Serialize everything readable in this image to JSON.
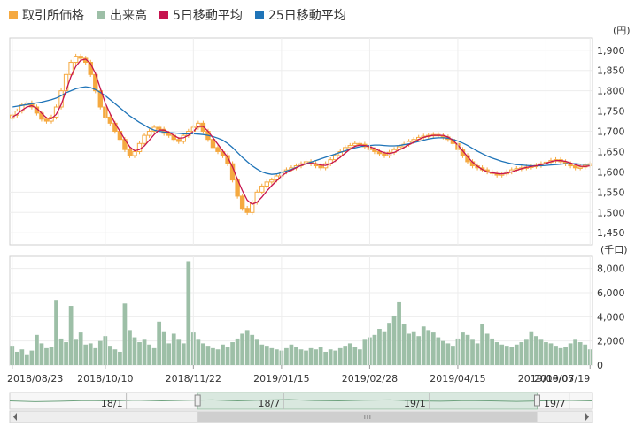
{
  "legend": [
    {
      "label": "取引所価格",
      "color": "#f5a940"
    },
    {
      "label": "出来高",
      "color": "#9dbfa7"
    },
    {
      "label": "5日移動平均",
      "color": "#c6144f"
    },
    {
      "label": "25日移動平均",
      "color": "#1f74b8"
    }
  ],
  "chart_data": [
    {
      "type": "line",
      "unit_label": "(円)",
      "ylim": [
        1420,
        1930
      ],
      "yticks": [
        1450,
        1500,
        1550,
        1600,
        1650,
        1700,
        1750,
        1800,
        1850,
        1900
      ],
      "ytick_labels": [
        "1,450",
        "1,500",
        "1,550",
        "1,600",
        "1,650",
        "1,700",
        "1,750",
        "1,800",
        "1,850",
        "1,900"
      ],
      "grid": true,
      "series": [
        {
          "name": "取引所価格",
          "kind": "candlestick",
          "color": "#f5a940",
          "values": [
            1740,
            1750,
            1765,
            1770,
            1760,
            1745,
            1730,
            1725,
            1735,
            1760,
            1800,
            1840,
            1870,
            1885,
            1880,
            1870,
            1840,
            1800,
            1760,
            1735,
            1720,
            1700,
            1680,
            1655,
            1640,
            1650,
            1670,
            1690,
            1700,
            1710,
            1705,
            1695,
            1690,
            1680,
            1675,
            1690,
            1700,
            1710,
            1720,
            1700,
            1680,
            1660,
            1650,
            1640,
            1620,
            1580,
            1540,
            1510,
            1500,
            1525,
            1550,
            1565,
            1575,
            1580,
            1590,
            1600,
            1605,
            1610,
            1615,
            1620,
            1625,
            1620,
            1615,
            1610,
            1620,
            1630,
            1640,
            1650,
            1660,
            1665,
            1670,
            1668,
            1662,
            1655,
            1650,
            1645,
            1640,
            1648,
            1655,
            1662,
            1668,
            1675,
            1680,
            1685,
            1688,
            1690,
            1692,
            1690,
            1686,
            1680,
            1670,
            1655,
            1640,
            1625,
            1615,
            1610,
            1605,
            1600,
            1596,
            1592,
            1595,
            1600,
            1605,
            1608,
            1610,
            1612,
            1614,
            1616,
            1620,
            1624,
            1628,
            1630,
            1625,
            1620,
            1615,
            1610,
            1612,
            1616,
            1620
          ]
        },
        {
          "name": "5日移動平均",
          "kind": "line",
          "color": "#c6144f",
          "values": [
            1735,
            1742,
            1752,
            1760,
            1763,
            1757,
            1745,
            1733,
            1731,
            1742,
            1766,
            1800,
            1835,
            1860,
            1875,
            1878,
            1867,
            1842,
            1806,
            1770,
            1743,
            1720,
            1700,
            1680,
            1662,
            1652,
            1655,
            1664,
            1678,
            1692,
            1703,
            1703,
            1698,
            1690,
            1683,
            1684,
            1690,
            1700,
            1712,
            1712,
            1700,
            1684,
            1668,
            1652,
            1636,
            1612,
            1582,
            1554,
            1530,
            1520,
            1525,
            1538,
            1553,
            1566,
            1578,
            1590,
            1598,
            1604,
            1610,
            1616,
            1620,
            1621,
            1620,
            1617,
            1616,
            1620,
            1627,
            1636,
            1646,
            1656,
            1663,
            1666,
            1665,
            1662,
            1658,
            1652,
            1647,
            1645,
            1648,
            1654,
            1660,
            1667,
            1673,
            1680,
            1685,
            1688,
            1690,
            1690,
            1690,
            1686,
            1678,
            1666,
            1652,
            1637,
            1624,
            1614,
            1606,
            1600,
            1598,
            1596,
            1595,
            1597,
            1600,
            1604,
            1608,
            1611,
            1613,
            1615,
            1618,
            1621,
            1625,
            1628,
            1628,
            1626,
            1622,
            1618,
            1614,
            1613,
            1615
          ]
        },
        {
          "name": "25日移動平均",
          "kind": "line",
          "color": "#1f74b8",
          "values": [
            1760,
            1762,
            1764,
            1766,
            1768,
            1770,
            1772,
            1775,
            1778,
            1782,
            1788,
            1795,
            1800,
            1805,
            1808,
            1810,
            1808,
            1803,
            1796,
            1788,
            1778,
            1768,
            1758,
            1748,
            1738,
            1730,
            1722,
            1715,
            1708,
            1703,
            1700,
            1698,
            1697,
            1696,
            1695,
            1694,
            1694,
            1694,
            1693,
            1692,
            1690,
            1687,
            1683,
            1678,
            1670,
            1660,
            1648,
            1636,
            1625,
            1615,
            1607,
            1600,
            1596,
            1594,
            1595,
            1598,
            1602,
            1606,
            1611,
            1616,
            1620,
            1624,
            1628,
            1632,
            1636,
            1640,
            1644,
            1648,
            1652,
            1656,
            1659,
            1662,
            1664,
            1665,
            1666,
            1666,
            1665,
            1664,
            1664,
            1665,
            1667,
            1669,
            1672,
            1675,
            1678,
            1681,
            1683,
            1684,
            1684,
            1683,
            1680,
            1676,
            1671,
            1665,
            1658,
            1651,
            1645,
            1639,
            1634,
            1630,
            1626,
            1623,
            1620,
            1618,
            1617,
            1616,
            1615,
            1615,
            1615,
            1616,
            1617,
            1618,
            1619,
            1620,
            1620,
            1620,
            1619,
            1619,
            1619
          ]
        }
      ]
    },
    {
      "type": "bar",
      "unit_label": "(千口)",
      "ylim": [
        0,
        9000
      ],
      "yticks": [
        0,
        2000,
        4000,
        6000,
        8000
      ],
      "ytick_labels": [
        "0",
        "2,000",
        "4,000",
        "6,000",
        "8,000"
      ],
      "grid": true,
      "series": [
        {
          "name": "出来高",
          "color": "#9dbfa7",
          "values": [
            1600,
            1100,
            1300,
            900,
            1200,
            2500,
            1800,
            1400,
            1500,
            5400,
            2200,
            1900,
            4900,
            2100,
            2700,
            1700,
            1800,
            1400,
            2000,
            2400,
            1600,
            1300,
            1100,
            5100,
            2900,
            2300,
            1900,
            2100,
            1700,
            1400,
            3600,
            2800,
            1800,
            2600,
            2100,
            1800,
            8600,
            2700,
            2100,
            1800,
            1600,
            1400,
            1300,
            1700,
            1500,
            1900,
            2200,
            2600,
            2900,
            2500,
            2100,
            1700,
            1600,
            1400,
            1300,
            1200,
            1400,
            1700,
            1500,
            1300,
            1200,
            1400,
            1300,
            1500,
            1100,
            1300,
            1200,
            1400,
            1600,
            1800,
            1500,
            1300,
            2100,
            2300,
            2500,
            3000,
            2800,
            3500,
            4100,
            5200,
            3400,
            2600,
            2800,
            2400,
            3200,
            2900,
            2700,
            2300,
            2000,
            1800,
            1600,
            2200,
            2700,
            2500,
            2100,
            1800,
            3400,
            2600,
            2200,
            1900,
            1700,
            1600,
            1500,
            1700,
            1900,
            2100,
            2800,
            2400,
            2100,
            1900,
            1800,
            1600,
            1400,
            1500,
            1800,
            2100,
            1900,
            1700,
            1300
          ]
        }
      ]
    }
  ],
  "x_axis": {
    "labels": [
      "2018/08/23",
      "2018/10/10",
      "2018/11/22",
      "2019/01/15",
      "2019/02/28",
      "2019/04/15",
      "2019/06/05",
      "2019/07/19"
    ],
    "label_index": [
      0,
      19,
      37,
      55,
      73,
      91,
      109,
      118
    ]
  },
  "navigator": {
    "labels": [
      "18/1",
      "18/7",
      "19/1",
      "19/7"
    ],
    "label_pos": [
      0.2,
      0.47,
      0.72,
      0.96
    ],
    "window": [
      0.52,
      1.0
    ],
    "line": [
      0.5,
      0.55,
      0.52,
      0.48,
      0.5,
      0.46,
      0.5,
      0.47,
      0.44,
      0.5,
      0.45,
      0.42,
      0.48,
      0.5,
      0.46,
      0.44,
      0.5,
      0.52,
      0.48,
      0.5,
      0.53,
      0.5,
      0.47,
      0.5
    ]
  }
}
